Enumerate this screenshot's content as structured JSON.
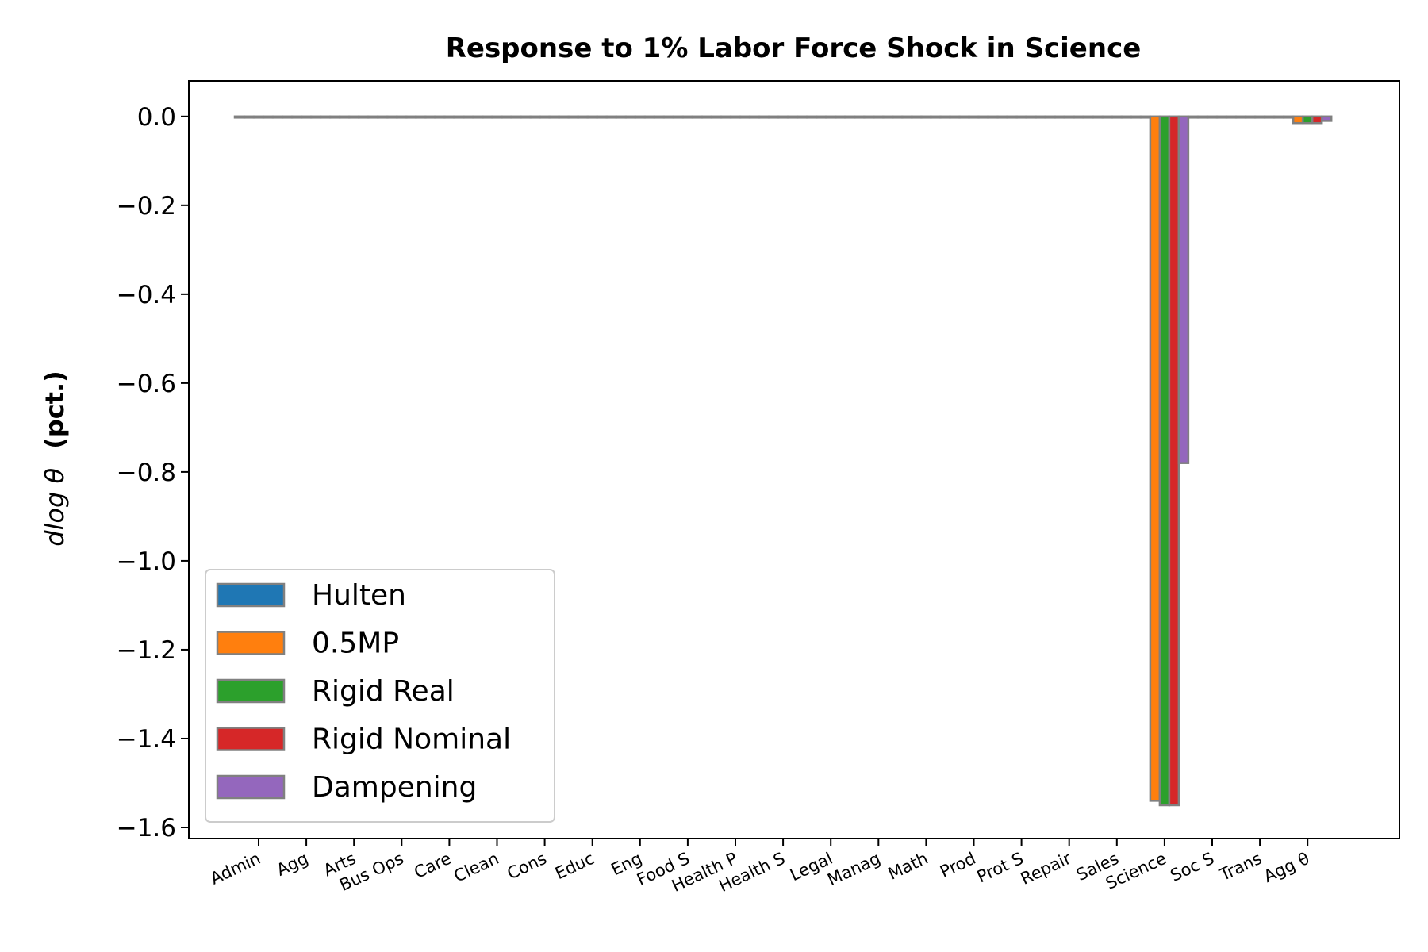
{
  "chart_data": {
    "type": "bar",
    "title": "Response to 1% Labor Force Shock in Science",
    "ylabel_math": "dlog θ",
    "ylabel_text": "(pct.)",
    "xlabel": "",
    "ylim": [
      -1.625,
      0.08
    ],
    "yticks": [
      0.0,
      -0.2,
      -0.4,
      -0.6,
      -0.8,
      -1.0,
      -1.2,
      -1.4,
      -1.6
    ],
    "ytick_labels": [
      "0.0",
      "−0.2",
      "−0.4",
      "−0.6",
      "−0.8",
      "−1.0",
      "−1.2",
      "−1.4",
      "−1.6"
    ],
    "grid": false,
    "legend_position": "lower-left",
    "categories": [
      "Admin",
      "Agg",
      "Arts",
      "Bus Ops",
      "Care",
      "Clean",
      "Cons",
      "Educ",
      "Eng",
      "Food S",
      "Health P",
      "Health S",
      "Legal",
      "Manag",
      "Math",
      "Prod",
      "Prot S",
      "Repair",
      "Sales",
      "Science",
      "Soc S",
      "Trans",
      "Agg θ"
    ],
    "series": [
      {
        "name": "Hulten",
        "color": "#1f77b4",
        "values": [
          0,
          0,
          0,
          0,
          0,
          0,
          0,
          0,
          0,
          0,
          0,
          0,
          0,
          0,
          0,
          0,
          0,
          0,
          0,
          0,
          0,
          0,
          0
        ]
      },
      {
        "name": "0.5MP",
        "color": "#ff7f0e",
        "values": [
          0,
          0,
          0,
          0,
          0,
          0,
          0,
          0,
          0,
          0,
          0,
          0,
          0,
          0,
          0,
          0,
          0,
          0,
          0,
          -1.54,
          0,
          0,
          -0.015
        ]
      },
      {
        "name": "Rigid Real",
        "color": "#2ca02c",
        "values": [
          0,
          0,
          0,
          0,
          0,
          0,
          0,
          0,
          0,
          0,
          0,
          0,
          0,
          0,
          0,
          0,
          0,
          0,
          0,
          -1.55,
          0,
          0,
          -0.015
        ]
      },
      {
        "name": "Rigid Nominal",
        "color": "#d62728",
        "values": [
          0,
          0,
          0,
          0,
          0,
          0,
          0,
          0,
          0,
          0,
          0,
          0,
          0,
          0,
          0,
          0,
          0,
          0,
          0,
          -1.55,
          0,
          0,
          -0.015
        ]
      },
      {
        "name": "Dampening",
        "color": "#9467bd",
        "values": [
          0,
          0,
          0,
          0,
          0,
          0,
          0,
          0,
          0,
          0,
          0,
          0,
          0,
          0,
          0,
          0,
          0,
          0,
          0,
          -0.78,
          0,
          0,
          -0.01
        ]
      }
    ],
    "edge_color": "#808080",
    "axis_color": "#000000"
  }
}
